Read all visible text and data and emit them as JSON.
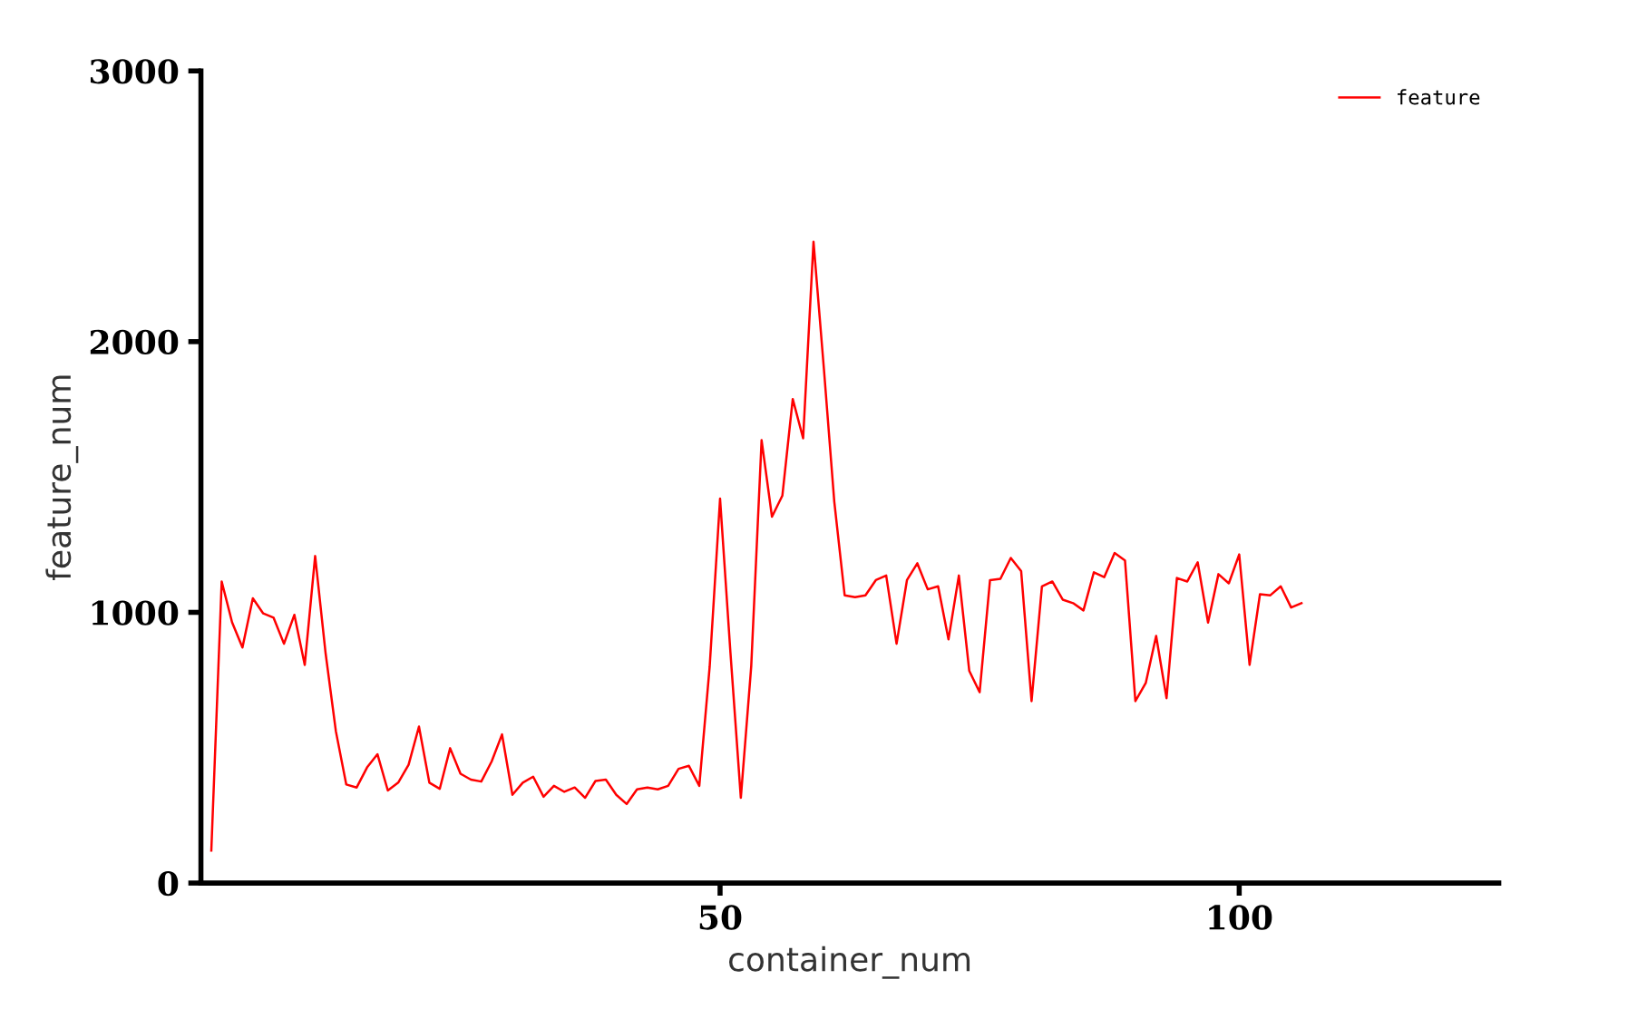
{
  "chart_data": {
    "type": "line",
    "xlabel": "container_num",
    "ylabel": "feature_num",
    "x": [
      1,
      2,
      3,
      4,
      5,
      6,
      7,
      8,
      9,
      10,
      11,
      12,
      13,
      14,
      15,
      16,
      17,
      18,
      19,
      20,
      21,
      22,
      23,
      24,
      25,
      26,
      27,
      28,
      29,
      30,
      31,
      32,
      33,
      34,
      35,
      36,
      37,
      38,
      39,
      40,
      41,
      42,
      43,
      44,
      45,
      46,
      47,
      48,
      49,
      50,
      51,
      52,
      53,
      54,
      55,
      56,
      57,
      58,
      59,
      60,
      61,
      62,
      63,
      64,
      65,
      66,
      67,
      68,
      69,
      70,
      71,
      72,
      73,
      74,
      75,
      76,
      77,
      78,
      79,
      80,
      81,
      82,
      83,
      84,
      85,
      86,
      87,
      88,
      89,
      90,
      91,
      92,
      93,
      94,
      95,
      96,
      97,
      98,
      99,
      100,
      101,
      102,
      103,
      104,
      105,
      106
    ],
    "series": [
      {
        "name": "feature",
        "color": "#ff0000",
        "values": [
          120,
          1114,
          963,
          870,
          1052,
          996,
          980,
          884,
          991,
          806,
          1208,
          851,
          560,
          364,
          353,
          427,
          476,
          342,
          371,
          437,
          578,
          371,
          348,
          498,
          404,
          382,
          375,
          449,
          549,
          326,
          371,
          393,
          319,
          359,
          337,
          353,
          315,
          377,
          382,
          326,
          292,
          346,
          353,
          346,
          359,
          422,
          433,
          359,
          800,
          1420,
          851,
          315,
          800,
          1636,
          1353,
          1431,
          1788,
          1643,
          2369,
          1900,
          1409,
          1063,
          1056,
          1063,
          1119,
          1136,
          884,
          1119,
          1181,
          1085,
          1096,
          900,
          1136,
          784,
          705,
          1119,
          1124,
          1201,
          1152,
          672,
          1096,
          1114,
          1047,
          1034,
          1007,
          1148,
          1130,
          1219,
          1192,
          672,
          739,
          913,
          683,
          1127,
          1114,
          1185,
          962,
          1141,
          1107,
          1214,
          806,
          1067,
          1063,
          1096,
          1018,
          1034
        ]
      }
    ],
    "xlim": [
      0,
      125
    ],
    "xticks": [
      50,
      100
    ],
    "ylim": [
      0,
      3000
    ],
    "yticks": [
      0,
      1000,
      2000,
      3000
    ],
    "grid": false,
    "legend": "top right",
    "marker": "none",
    "line_style": "solid"
  }
}
